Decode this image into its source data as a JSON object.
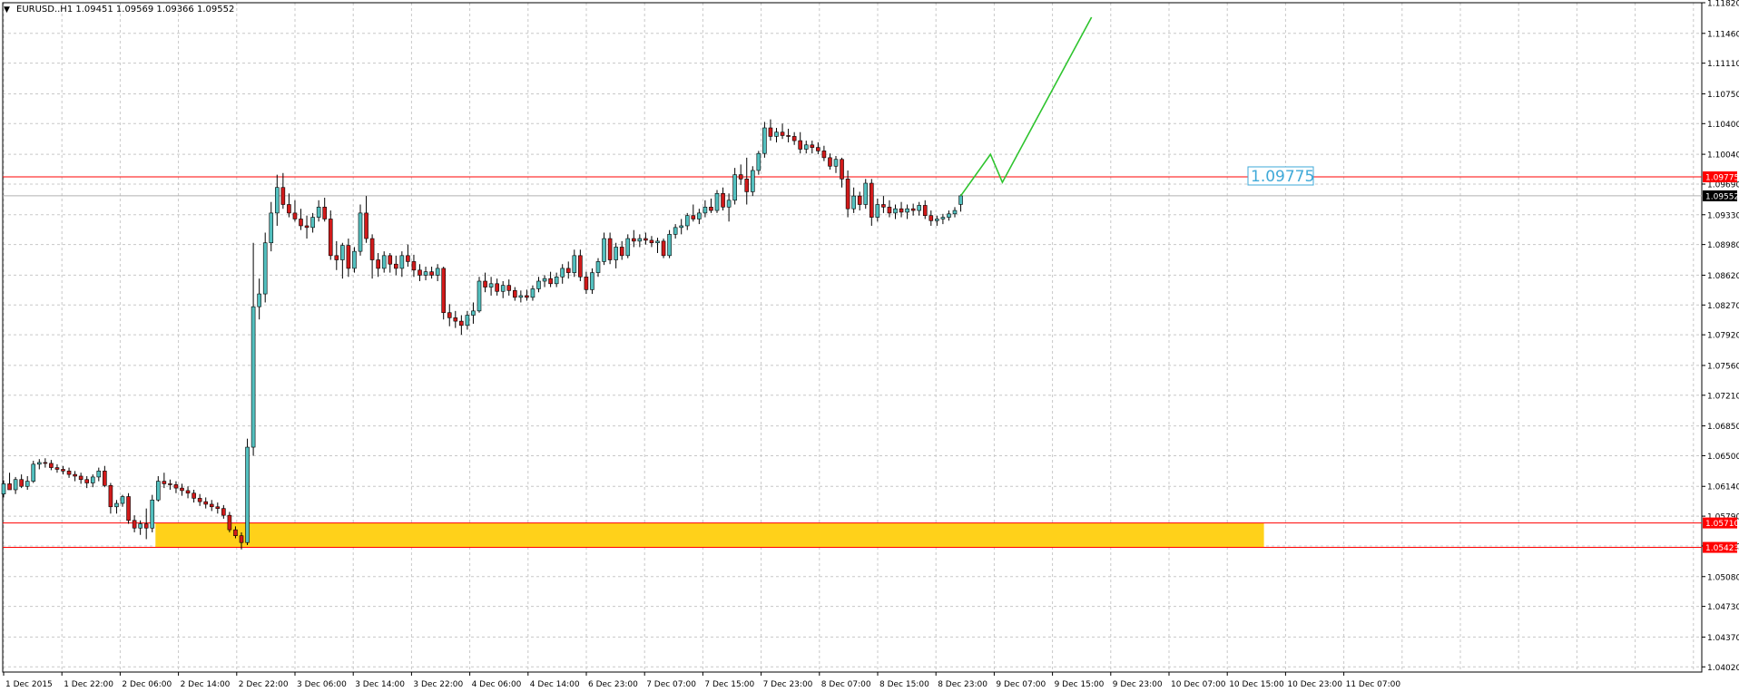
{
  "chart_data": {
    "type": "candlestick",
    "symbol_info": "EURUSD..H1 1.09451 1.09569 1.09366 1.09552",
    "ylim": [
      1.03959,
      1.1182
    ],
    "y_tick_labels": [
      "1.11820",
      "1.11460",
      "1.11110",
      "1.10750",
      "1.10400",
      "1.10040",
      "1.09690",
      "1.09330",
      "1.08980",
      "1.08620",
      "1.08270",
      "1.07920",
      "1.07560",
      "1.07210",
      "1.06850",
      "1.06500",
      "1.06140",
      "1.05790",
      "1.05440",
      "1.05080",
      "1.04730",
      "1.04370",
      "1.04020"
    ],
    "x_tick_labels": [
      "1 Dec 2015",
      "1 Dec 22:00",
      "2 Dec 06:00",
      "2 Dec 14:00",
      "2 Dec 22:00",
      "3 Dec 06:00",
      "3 Dec 14:00",
      "3 Dec 22:00",
      "4 Dec 06:00",
      "4 Dec 14:00",
      "6 Dec 23:00",
      "7 Dec 07:00",
      "7 Dec 15:00",
      "7 Dec 23:00",
      "8 Dec 07:00",
      "8 Dec 15:00",
      "8 Dec 23:00",
      "9 Dec 07:00",
      "9 Dec 15:00",
      "9 Dec 23:00",
      "10 Dec 07:00",
      "10 Dec 15:00",
      "10 Dec 23:00",
      "11 Dec 07:00"
    ],
    "current_price": 1.09552,
    "current_price_label": "1.09552",
    "horizontal_lines": [
      {
        "price": 1.09775,
        "label": "1.09775",
        "color": "#ff0000"
      },
      {
        "price": 1.0571,
        "label": "1.05710",
        "color": "#ff0000"
      },
      {
        "price": 1.05423,
        "label": "1.05423",
        "color": "#ff0000"
      }
    ],
    "annotation_text": "1.09775",
    "annotation_price": 1.09775,
    "zone": {
      "from_bar": 26,
      "to_bar": 212,
      "high": 1.0571,
      "low": 1.05423,
      "color": "#ffd11a"
    },
    "projection": {
      "color": "#2ec42e",
      "points": [
        [
          1.09552,
          0
        ],
        [
          1.1004,
          5
        ],
        [
          1.0971,
          7
        ],
        [
          1.1165,
          22
        ]
      ]
    },
    "bull_color": "#53c0bf",
    "bear_color": "#d11a1a",
    "grid": true,
    "candles": [
      [
        1.0605,
        1.0621,
        1.0601,
        1.0617
      ],
      [
        1.0617,
        1.063,
        1.0611,
        1.061
      ],
      [
        1.061,
        1.0625,
        1.0605,
        1.0622
      ],
      [
        1.0622,
        1.0628,
        1.0612,
        1.0614
      ],
      [
        1.0614,
        1.0626,
        1.061,
        1.062
      ],
      [
        1.062,
        1.0644,
        1.0618,
        1.064
      ],
      [
        1.064,
        1.0646,
        1.0634,
        1.0642
      ],
      [
        1.0642,
        1.0647,
        1.0636,
        1.0641
      ],
      [
        1.0641,
        1.0645,
        1.0633,
        1.0636
      ],
      [
        1.0636,
        1.064,
        1.063,
        1.0634
      ],
      [
        1.0634,
        1.0638,
        1.0628,
        1.0632
      ],
      [
        1.0632,
        1.0636,
        1.0624,
        1.0628
      ],
      [
        1.0628,
        1.0632,
        1.062,
        1.0626
      ],
      [
        1.0626,
        1.063,
        1.0617,
        1.0622
      ],
      [
        1.0622,
        1.0626,
        1.0612,
        1.0618
      ],
      [
        1.0618,
        1.0628,
        1.0613,
        1.0625
      ],
      [
        1.0625,
        1.0636,
        1.062,
        1.0632
      ],
      [
        1.0632,
        1.0638,
        1.0613,
        1.0615
      ],
      [
        1.0615,
        1.0618,
        1.0582,
        1.059
      ],
      [
        1.059,
        1.0598,
        1.0582,
        1.0594
      ],
      [
        1.0594,
        1.0604,
        1.059,
        1.0602
      ],
      [
        1.0602,
        1.0606,
        1.057,
        1.0574
      ],
      [
        1.0574,
        1.058,
        1.056,
        1.0565
      ],
      [
        1.0565,
        1.0574,
        1.0557,
        1.057
      ],
      [
        1.057,
        1.0588,
        1.0552,
        1.0565
      ],
      [
        1.0565,
        1.0604,
        1.056,
        1.0598
      ],
      [
        1.0598,
        1.0626,
        1.0596,
        1.062
      ],
      [
        1.062,
        1.063,
        1.0612,
        1.0617
      ],
      [
        1.0617,
        1.0622,
        1.061,
        1.0616
      ],
      [
        1.0616,
        1.062,
        1.0606,
        1.0612
      ],
      [
        1.0612,
        1.0617,
        1.0603,
        1.0609
      ],
      [
        1.0609,
        1.0614,
        1.06,
        1.0606
      ],
      [
        1.0606,
        1.061,
        1.0595,
        1.06
      ],
      [
        1.06,
        1.0605,
        1.0591,
        1.0596
      ],
      [
        1.0596,
        1.0601,
        1.0588,
        1.0593
      ],
      [
        1.0593,
        1.0598,
        1.0585,
        1.059
      ],
      [
        1.059,
        1.0595,
        1.0582,
        1.0588
      ],
      [
        1.0588,
        1.0592,
        1.0576,
        1.058
      ],
      [
        1.058,
        1.0584,
        1.056,
        1.0563
      ],
      [
        1.0563,
        1.0567,
        1.0553,
        1.0556
      ],
      [
        1.0556,
        1.056,
        1.054,
        1.0548
      ],
      [
        1.0548,
        1.067,
        1.0545,
        1.066
      ],
      [
        1.066,
        1.09,
        1.065,
        1.0825
      ],
      [
        1.0825,
        1.0858,
        1.081,
        1.084
      ],
      [
        1.084,
        1.0912,
        1.083,
        1.09
      ],
      [
        1.09,
        1.0948,
        1.089,
        1.0935
      ],
      [
        1.0935,
        1.098,
        1.092,
        1.0965
      ],
      [
        1.0965,
        1.0982,
        1.094,
        1.0945
      ],
      [
        1.0945,
        1.0958,
        1.093,
        1.0935
      ],
      [
        1.0935,
        1.095,
        1.0925,
        1.0928
      ],
      [
        1.0928,
        1.094,
        1.0915,
        1.092
      ],
      [
        1.092,
        1.0932,
        1.0905,
        1.0918
      ],
      [
        1.0918,
        1.0935,
        1.0912,
        1.093
      ],
      [
        1.093,
        1.095,
        1.0925,
        1.0942
      ],
      [
        1.0942,
        1.0953,
        1.0925,
        1.0928
      ],
      [
        1.0928,
        1.0938,
        1.088,
        1.0885
      ],
      [
        1.0885,
        1.0902,
        1.0868,
        1.088
      ],
      [
        1.088,
        1.09,
        1.0858,
        1.0897
      ],
      [
        1.0897,
        1.0905,
        1.086,
        1.087
      ],
      [
        1.087,
        1.0895,
        1.0865,
        1.089
      ],
      [
        1.089,
        1.0945,
        1.0885,
        1.0935
      ],
      [
        1.0935,
        1.0955,
        1.09,
        1.0905
      ],
      [
        1.0905,
        1.091,
        1.0858,
        1.088
      ],
      [
        1.088,
        1.0888,
        1.086,
        1.087
      ],
      [
        1.087,
        1.089,
        1.0865,
        1.0885
      ],
      [
        1.0885,
        1.0888,
        1.0865,
        1.0875
      ],
      [
        1.0875,
        1.0885,
        1.0862,
        1.087
      ],
      [
        1.087,
        1.089,
        1.086,
        1.0885
      ],
      [
        1.0885,
        1.0898,
        1.0872,
        1.0878
      ],
      [
        1.0878,
        1.0886,
        1.086,
        1.0868
      ],
      [
        1.0868,
        1.0875,
        1.0855,
        1.0862
      ],
      [
        1.0862,
        1.0872,
        1.0856,
        1.0866
      ],
      [
        1.0866,
        1.0872,
        1.0858,
        1.0862
      ],
      [
        1.0862,
        1.0875,
        1.0855,
        1.087
      ],
      [
        1.087,
        1.0872,
        1.081,
        1.0818
      ],
      [
        1.0818,
        1.0828,
        1.0802,
        1.0812
      ],
      [
        1.0812,
        1.082,
        1.08,
        1.0808
      ],
      [
        1.0808,
        1.0815,
        1.0792,
        1.0803
      ],
      [
        1.0803,
        1.082,
        1.0798,
        1.0815
      ],
      [
        1.0815,
        1.083,
        1.0805,
        1.082
      ],
      [
        1.082,
        1.086,
        1.0818,
        1.0855
      ],
      [
        1.0855,
        1.0865,
        1.0842,
        1.0848
      ],
      [
        1.0848,
        1.086,
        1.0838,
        1.0852
      ],
      [
        1.0852,
        1.0858,
        1.0838,
        1.0843
      ],
      [
        1.0843,
        1.0855,
        1.0835,
        1.085
      ],
      [
        1.085,
        1.0857,
        1.0838,
        1.0844
      ],
      [
        1.0844,
        1.0848,
        1.0832,
        1.0836
      ],
      [
        1.0836,
        1.0844,
        1.083,
        1.0838
      ],
      [
        1.0838,
        1.0845,
        1.0832,
        1.0836
      ],
      [
        1.0836,
        1.085,
        1.0832,
        1.0846
      ],
      [
        1.0846,
        1.086,
        1.0842,
        1.0855
      ],
      [
        1.0855,
        1.0862,
        1.0848,
        1.0858
      ],
      [
        1.0858,
        1.0866,
        1.0848,
        1.0852
      ],
      [
        1.0852,
        1.0865,
        1.0848,
        1.086
      ],
      [
        1.086,
        1.0875,
        1.0852,
        1.087
      ],
      [
        1.087,
        1.0878,
        1.0858,
        1.0865
      ],
      [
        1.0865,
        1.0892,
        1.086,
        1.0885
      ],
      [
        1.0885,
        1.0892,
        1.0855,
        1.086
      ],
      [
        1.086,
        1.0866,
        1.084,
        1.0845
      ],
      [
        1.0845,
        1.087,
        1.084,
        1.0865
      ],
      [
        1.0865,
        1.0882,
        1.086,
        1.0878
      ],
      [
        1.0878,
        1.0912,
        1.0874,
        1.0905
      ],
      [
        1.0905,
        1.0912,
        1.0875,
        1.088
      ],
      [
        1.088,
        1.09,
        1.087,
        1.0895
      ],
      [
        1.0895,
        1.0902,
        1.088,
        1.0885
      ],
      [
        1.0885,
        1.091,
        1.0882,
        1.0905
      ],
      [
        1.0905,
        1.0915,
        1.0895,
        1.0902
      ],
      [
        1.0902,
        1.091,
        1.0895,
        1.0905
      ],
      [
        1.0905,
        1.0912,
        1.0898,
        1.0903
      ],
      [
        1.0903,
        1.0908,
        1.0895,
        1.09
      ],
      [
        1.09,
        1.0906,
        1.0888,
        1.0902
      ],
      [
        1.0902,
        1.0905,
        1.0882,
        1.0885
      ],
      [
        1.0885,
        1.0915,
        1.0882,
        1.091
      ],
      [
        1.091,
        1.0922,
        1.0905,
        1.0918
      ],
      [
        1.0918,
        1.0928,
        1.091,
        1.092
      ],
      [
        1.092,
        1.0935,
        1.0915,
        1.0932
      ],
      [
        1.0932,
        1.0945,
        1.0925,
        1.0928
      ],
      [
        1.0928,
        1.094,
        1.0922,
        1.0935
      ],
      [
        1.0935,
        1.095,
        1.093,
        1.0942
      ],
      [
        1.0942,
        1.0952,
        1.0935,
        1.0938
      ],
      [
        1.0938,
        1.0962,
        1.0935,
        1.0958
      ],
      [
        1.0958,
        1.0965,
        1.0938,
        1.0942
      ],
      [
        1.0942,
        1.0958,
        1.0925,
        1.095
      ],
      [
        1.095,
        1.0988,
        1.0945,
        1.098
      ],
      [
        1.098,
        1.0992,
        1.0968,
        1.0975
      ],
      [
        1.0975,
        1.1,
        1.0945,
        1.096
      ],
      [
        1.096,
        1.099,
        1.0955,
        1.0985
      ],
      [
        1.0985,
        1.1008,
        1.098,
        1.1005
      ],
      [
        1.1005,
        1.1042,
        1.1,
        1.1035
      ],
      [
        1.1035,
        1.1045,
        1.102,
        1.1025
      ],
      [
        1.1025,
        1.1035,
        1.1018,
        1.103
      ],
      [
        1.103,
        1.104,
        1.1022,
        1.1026
      ],
      [
        1.1026,
        1.1034,
        1.1018,
        1.1025
      ],
      [
        1.1025,
        1.103,
        1.1015,
        1.102
      ],
      [
        1.102,
        1.103,
        1.1005,
        1.101
      ],
      [
        1.101,
        1.102,
        1.1005,
        1.1015
      ],
      [
        1.1015,
        1.102,
        1.1005,
        1.1012
      ],
      [
        1.1012,
        1.1018,
        1.1004,
        1.1008
      ],
      [
        1.1008,
        1.1014,
        1.0996,
        1.1
      ],
      [
        1.1,
        1.1005,
        1.0986,
        1.099
      ],
      [
        1.099,
        1.1002,
        1.0982,
        1.0998
      ],
      [
        1.0998,
        1.1,
        1.0965,
        1.0975
      ],
      [
        1.0975,
        1.0985,
        1.093,
        1.094
      ],
      [
        1.094,
        1.0965,
        1.0935,
        1.0955
      ],
      [
        1.0955,
        1.096,
        1.0938,
        1.0945
      ],
      [
        1.0945,
        1.0975,
        1.094,
        1.097
      ],
      [
        1.097,
        1.0975,
        1.092,
        1.093
      ],
      [
        1.093,
        1.0952,
        1.0925,
        1.0945
      ],
      [
        1.0945,
        1.0955,
        1.0935,
        1.0942
      ],
      [
        1.0942,
        1.095,
        1.093,
        1.0935
      ],
      [
        1.0935,
        1.0945,
        1.0928,
        1.094
      ],
      [
        1.094,
        1.0948,
        1.093,
        1.0936
      ],
      [
        1.0936,
        1.0945,
        1.0928,
        1.094
      ],
      [
        1.094,
        1.0946,
        1.0932,
        1.0938
      ],
      [
        1.0938,
        1.0948,
        1.0932,
        1.0944
      ],
      [
        1.0944,
        1.095,
        1.0928,
        1.0932
      ],
      [
        1.0932,
        1.0938,
        1.092,
        1.0926
      ],
      [
        1.0926,
        1.0932,
        1.092,
        1.0928
      ],
      [
        1.0928,
        1.0934,
        1.0922,
        1.093
      ],
      [
        1.093,
        1.0938,
        1.0926,
        1.0934
      ],
      [
        1.0934,
        1.0942,
        1.093,
        1.0938
      ],
      [
        1.09451,
        1.09569,
        1.09366,
        1.09552
      ]
    ]
  }
}
